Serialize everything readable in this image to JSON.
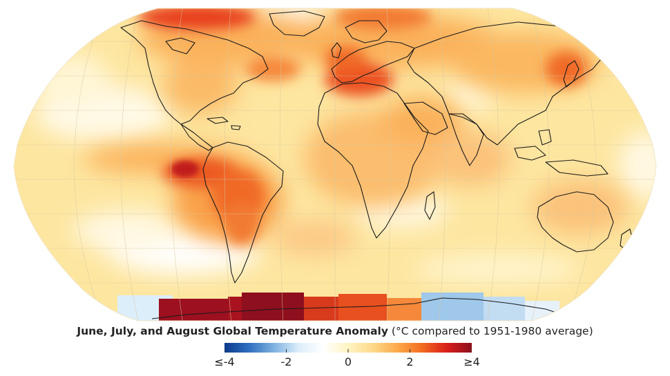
{
  "map": {
    "projection": "Robinson",
    "region": "Global",
    "variable": "Temperature anomaly",
    "overlays": [
      "coastlines",
      "graticule"
    ]
  },
  "caption": {
    "title": "June, July, and August Global Temperature Anomaly",
    "subtitle": "(°C compared to 1951-1980 average)"
  },
  "colorbar": {
    "min": -4,
    "max": 4,
    "colors": [
      "#0a3a8c",
      "#2f6fc0",
      "#7fb2e0",
      "#dceefa",
      "#ffffff",
      "#fff4c2",
      "#fdd98a",
      "#fca94a",
      "#f26a1f",
      "#d81e1a",
      "#8e0f1e"
    ],
    "tick_labels": [
      "≤-4",
      "-2",
      "0",
      "2",
      "≥4"
    ]
  },
  "colors": {
    "hot_extreme": "#8e0f1e",
    "hot": "#e8401f",
    "warm": "#f9a84a",
    "mild": "#fde7a0",
    "neutral": "#ffffff",
    "cool": "#7fb2e0",
    "cold": "#0a3a8c",
    "coastline": "#1a1a1a"
  }
}
